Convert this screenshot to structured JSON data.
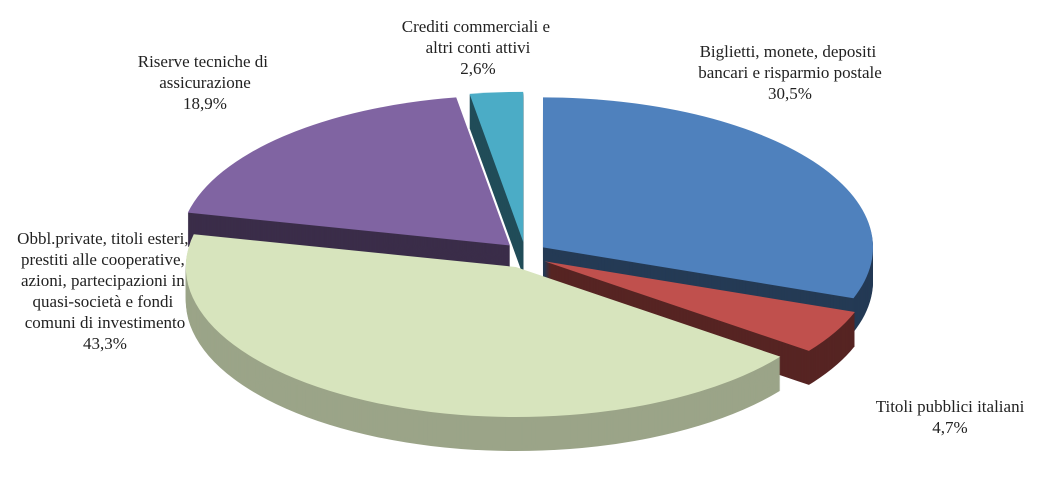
{
  "chart_data": {
    "type": "pie3d",
    "categories": [
      "Biglietti, monete, depositi bancari e risparmio postale",
      "Titoli pubblici italiani",
      "Obbl.private, titoli esteri, prestiti alle cooperative, azioni, partecipazioni in quasi-società e fondi comuni di investimento",
      "Riserve tecniche di assicurazione",
      "Crediti commerciali e altri conti attivi"
    ],
    "values": [
      30.5,
      4.7,
      43.3,
      18.9,
      2.6
    ],
    "value_labels": [
      "30,5%",
      "4,7%",
      "43,3%",
      "18,9%",
      "2,6%"
    ],
    "colors": [
      "#4f81bd",
      "#c0504d",
      "#d7e4bd",
      "#8064a2",
      "#4bacc6"
    ]
  }
}
